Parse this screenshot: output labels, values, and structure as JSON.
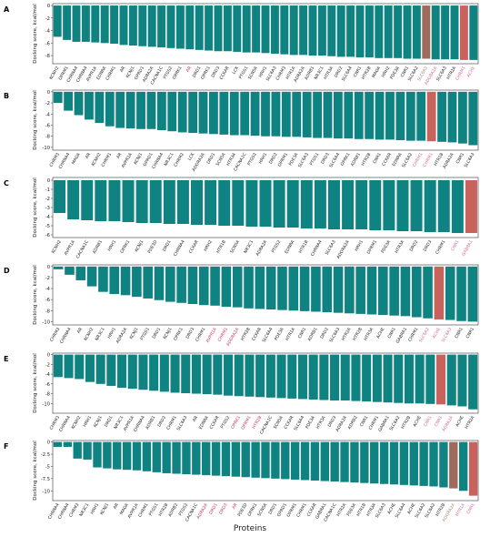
{
  "figure": {
    "xlabel": "Proteins"
  },
  "colors": {
    "teal": "#0f8282",
    "dark": "#2e5a5c",
    "red": "#c7625d",
    "brown": "#9c6b5c",
    "axis": "#333333",
    "pink": "#d96a9a",
    "magenta": "#d0316a"
  },
  "chart_data": [
    {
      "type": "bar",
      "panel": "A",
      "ylabel": "Docking score, kcal/mol",
      "ylim": [
        -9.3,
        0.3
      ],
      "yticks": [
        0,
        -2,
        -4,
        -6,
        -8
      ],
      "categories": [
        "KCNH2",
        "OPRM1",
        "CHRNA4",
        "CHRNA4",
        "AVPR1A",
        "EDNRA",
        "CHRM1",
        "AR",
        "KCNJ1",
        "OPRD1",
        "ADRA2A",
        "CACNA1C",
        "PTGS2",
        "OPRK1",
        "AR",
        "DRD1",
        "OPRK1",
        "DRD3",
        "CCKAR",
        "LCK",
        "PTGS1",
        "SCN5A",
        "HRH1",
        "SLC6A3",
        "CHRM3",
        "HTR1A",
        "ADRA2A",
        "ADRB1",
        "NR3C1",
        "HTR3A",
        "DRD2",
        "SLC6A4",
        "CNR1",
        "HTR2B",
        "MAOA",
        "HRH2",
        "PDE3A",
        "CNR1",
        "SLC6A2",
        "SLC6A2",
        "ADORA2A",
        "SLC6A3",
        "HTR2A",
        "CHRM1",
        "ACHE"
      ],
      "values": [
        -5.0,
        -5.5,
        -5.8,
        -5.8,
        -5.9,
        -6.0,
        -6.1,
        -6.3,
        -6.4,
        -6.5,
        -6.6,
        -6.7,
        -6.8,
        -6.9,
        -7.0,
        -7.1,
        -7.2,
        -7.3,
        -7.3,
        -7.4,
        -7.5,
        -7.5,
        -7.6,
        -7.7,
        -7.8,
        -7.9,
        -7.9,
        -8.0,
        -8.0,
        -8.1,
        -8.2,
        -8.2,
        -8.3,
        -8.3,
        -8.4,
        -8.4,
        -8.4,
        -8.5,
        -8.5,
        -8.5,
        -8.6,
        -8.6,
        -8.6,
        -8.7,
        -8.7
      ],
      "highlight": {
        "14": "magenta",
        "39": "brown",
        "40": "pink",
        "43": "red",
        "44": "pink"
      }
    },
    {
      "type": "bar",
      "panel": "B",
      "ylabel": "Docking score, kcal/mol",
      "ylim": [
        -10.5,
        0.3
      ],
      "yticks": [
        0,
        -2,
        -4,
        -6,
        -8,
        -10
      ],
      "categories": [
        "CHRM3",
        "CHRNA4",
        "MAOA",
        "AR",
        "KCNH2",
        "CHRM1",
        "AR",
        "AVPR1A",
        "KCNJ1",
        "OPRD1",
        "CHRNA4",
        "NR3C1",
        "CHRM2",
        "LCK",
        "ADORA2A",
        "DRD1",
        "SCN5A",
        "HTR3A",
        "CACNA1C",
        "PTGS2",
        "HRH1",
        "DRD2",
        "OPRM1",
        "PDE3A",
        "SLC6A3",
        "PTGS1",
        "DRD3",
        "SLC6A4",
        "OPRK1",
        "ADRB1",
        "HTR2B",
        "CNR1",
        "CCKAR",
        "EDNRA",
        "SLC6A2",
        "CHRM1",
        "CHRM1",
        "HTR1B",
        "ADRA2A",
        "CNR1",
        "SLC6A3"
      ],
      "values": [
        -2.0,
        -3.4,
        -4.2,
        -5.0,
        -5.6,
        -6.2,
        -6.5,
        -6.6,
        -6.7,
        -6.7,
        -6.9,
        -7.1,
        -7.3,
        -7.4,
        -7.5,
        -7.6,
        -7.7,
        -7.8,
        -7.8,
        -7.9,
        -8.0,
        -8.0,
        -8.1,
        -8.1,
        -8.2,
        -8.3,
        -8.3,
        -8.4,
        -8.4,
        -8.5,
        -8.5,
        -8.6,
        -8.6,
        -8.7,
        -8.8,
        -8.8,
        -8.9,
        -9.0,
        -9.1,
        -9.3,
        -9.6
      ],
      "highlight": {
        "35": "pink",
        "36": "red"
      }
    },
    {
      "type": "bar",
      "panel": "C",
      "ylabel": "Docking score, kcal/mol",
      "ylim": [
        -6.3,
        0.3
      ],
      "yticks": [
        0,
        -1,
        -2,
        -3,
        -4,
        -5,
        -6
      ],
      "categories": [
        "KCNH2",
        "AVPR1A",
        "CACNA1C",
        "ADRB1",
        "HRH1",
        "OPRK1",
        "KCNJ1",
        "PDE3D",
        "DRD1",
        "CHRNA4",
        "CCKAR",
        "HRH2",
        "HTR1B",
        "SCN5A",
        "NR3C1",
        "ADRA2A",
        "PTGS2",
        "EDNRA",
        "HTR1B",
        "CHRNA4",
        "SLC6A3",
        "ADORA2A",
        "HRH1",
        "OPRM1",
        "PDE3A",
        "HTR3A",
        "DRD2",
        "DRD3",
        "CHRM1",
        "CNR1",
        "GABRA1"
      ],
      "values": [
        -3.6,
        -4.3,
        -4.4,
        -4.5,
        -4.5,
        -4.6,
        -4.7,
        -4.7,
        -4.8,
        -4.8,
        -4.9,
        -4.9,
        -5.0,
        -5.0,
        -5.1,
        -5.1,
        -5.2,
        -5.2,
        -5.3,
        -5.3,
        -5.4,
        -5.4,
        -5.4,
        -5.5,
        -5.5,
        -5.6,
        -5.6,
        -5.7,
        -5.7,
        -5.8,
        -5.8
      ],
      "highlight": {
        "29": "pink",
        "30": "red"
      }
    },
    {
      "type": "bar",
      "panel": "D",
      "ylabel": "Docking score, kcal/mol",
      "ylim": [
        -10.6,
        0.3
      ],
      "yticks": [
        0,
        -2,
        -4,
        -6,
        -8,
        -10
      ],
      "categories": [
        "CHRM3",
        "CHRNA4",
        "AR",
        "KCNH2",
        "NR3C1",
        "HRH1",
        "ADRA2A",
        "KCNJ1",
        "PTGS1",
        "DRD1",
        "KCNJ1",
        "OPRK1",
        "DRD3",
        "CHRM1",
        "AVPR1A",
        "CHRM1",
        "ADORA2A",
        "HTR2B",
        "CCKAR",
        "SLC6A4",
        "PDE3A",
        "HTR1A",
        "CNR1",
        "ADRB1",
        "DRD2",
        "SLC6A3",
        "HTR2A",
        "HTR2B",
        "HTR3A",
        "ACHE",
        "CNR1",
        "GABRA1",
        "CHRM1",
        "SLC6A2",
        "ACHE",
        "SLC6A3",
        "CNR1",
        "CNR1"
      ],
      "values": [
        -0.5,
        -1.5,
        -2.5,
        -3.6,
        -4.6,
        -5.0,
        -5.2,
        -5.5,
        -5.8,
        -6.1,
        -6.4,
        -6.6,
        -6.8,
        -7.0,
        -7.1,
        -7.3,
        -7.4,
        -7.6,
        -7.7,
        -7.8,
        -7.9,
        -8.0,
        -8.1,
        -8.2,
        -8.3,
        -8.4,
        -8.5,
        -8.6,
        -8.7,
        -8.8,
        -8.9,
        -9.0,
        -9.2,
        -9.4,
        -9.6,
        -9.7,
        -9.9,
        -10.0
      ],
      "highlight": {
        "14": "magenta",
        "15": "magenta",
        "16": "magenta",
        "33": "pink",
        "34": "red",
        "35": "pink"
      }
    },
    {
      "type": "bar",
      "panel": "E",
      "ylabel": "Docking score, kcal/mol",
      "ylim": [
        -12.0,
        0.3
      ],
      "yticks": [
        0,
        -2,
        -4,
        -6,
        -8,
        -10
      ],
      "categories": [
        "CHRM3",
        "CHRNA4",
        "KCNH2",
        "HRH1",
        "KCNJ1",
        "DRD1",
        "NR3C1",
        "AVPR1A",
        "CHRNA4",
        "ADRB1",
        "DRD2",
        "CHRM1",
        "SLC6A3",
        "AR",
        "EDNRA",
        "CCKAR",
        "PTGS2",
        "OPRK1",
        "OPRM1",
        "HTR2B",
        "CACNA1C",
        "SCN5A",
        "CCKAR",
        "SLC6A4",
        "PDE3A",
        "HTR3A",
        "DRD3",
        "ADRA2A",
        "ADRB2",
        "CNR1",
        "CHRM1",
        "GABRA1",
        "SLC6A2",
        "HTR2B",
        "ACHE",
        "CNR1",
        "CNR1",
        "ADRA2A",
        "ACHE",
        "HTR2A"
      ],
      "values": [
        -4.6,
        -4.8,
        -5.0,
        -5.6,
        -6.0,
        -6.4,
        -6.8,
        -7.0,
        -7.2,
        -7.4,
        -7.6,
        -7.8,
        -7.9,
        -8.0,
        -8.1,
        -8.2,
        -8.4,
        -8.5,
        -8.6,
        -8.7,
        -8.8,
        -8.9,
        -9.0,
        -9.1,
        -9.2,
        -9.3,
        -9.4,
        -9.4,
        -9.5,
        -9.6,
        -9.7,
        -9.8,
        -9.9,
        -10.0,
        -10.0,
        -10.1,
        -10.2,
        -10.4,
        -10.6,
        -11.2
      ],
      "highlight": {
        "17": "magenta",
        "18": "magenta",
        "19": "magenta",
        "35": "pink",
        "36": "red",
        "37": "pink"
      }
    },
    {
      "type": "bar",
      "panel": "F",
      "ylabel": "Docking score, kcal/mol",
      "ylim": [
        -12.0,
        0.3
      ],
      "yticks": [
        0.0,
        -2.5,
        -5.0,
        -7.5,
        -10.0
      ],
      "categories": [
        "CHRNA4",
        "CHRNA4",
        "CHRM3",
        "NR3C1",
        "HRH1",
        "KCNJ1",
        "AR",
        "MAOA",
        "AVPR1A",
        "CHRM1",
        "PTGS1",
        "HTR2B",
        "ADRB2",
        "PTGS2",
        "CACNA1C",
        "ADRA2A",
        "DRD1",
        "DRD3",
        "AR",
        "PDE3D",
        "OPRK1",
        "SCN5A",
        "DRD1",
        "OPRD1",
        "OPRM1",
        "CHRM1",
        "CCKAR",
        "GABRA1",
        "CACNA1C",
        "HTR2A",
        "PDE3A",
        "HTR1B",
        "HTR3A",
        "SLC6A3",
        "ACHE",
        "SLC6A4",
        "ACHE",
        "SLC6A2",
        "SLC6A2",
        "HTR2B",
        "ADORA2A",
        "HTR1A",
        "CNR1"
      ],
      "values": [
        -1.0,
        -1.0,
        -3.4,
        -3.6,
        -5.2,
        -5.4,
        -5.6,
        -5.7,
        -5.8,
        -6.0,
        -6.2,
        -6.4,
        -6.5,
        -6.6,
        -6.7,
        -6.8,
        -6.9,
        -7.0,
        -7.1,
        -7.2,
        -7.3,
        -7.4,
        -7.5,
        -7.6,
        -7.7,
        -7.8,
        -7.9,
        -8.0,
        -8.1,
        -8.2,
        -8.3,
        -8.4,
        -8.5,
        -8.6,
        -8.7,
        -8.8,
        -8.9,
        -9.0,
        -9.1,
        -9.3,
        -9.5,
        -10.0,
        -11.0
      ],
      "highlight": {
        "15": "magenta",
        "16": "magenta",
        "17": "magenta",
        "18": "magenta",
        "40": "brown",
        "41": "pink",
        "42": "red"
      }
    }
  ]
}
